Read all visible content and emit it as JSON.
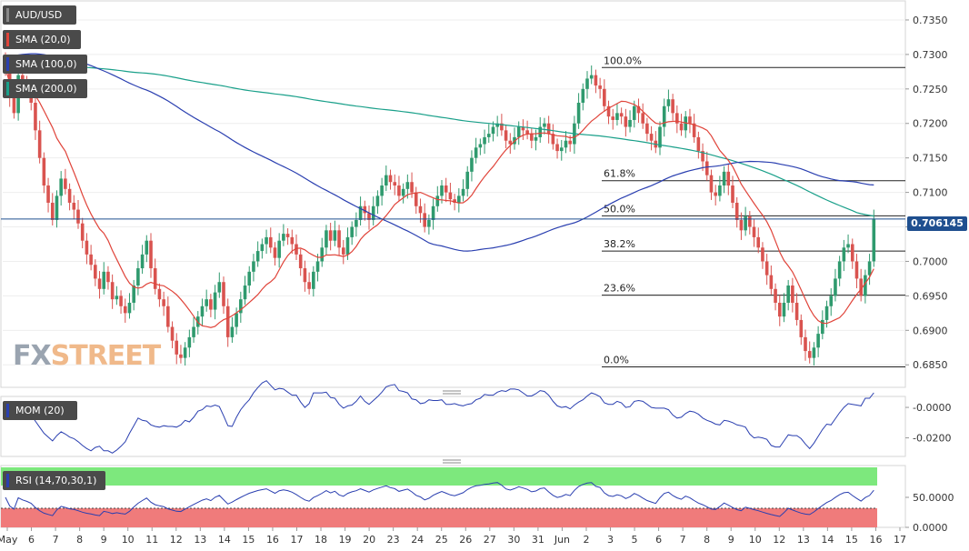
{
  "symbol": "AUD/USD",
  "indicators": {
    "sma20": {
      "label": "SMA (20,0)",
      "color": "#e0443a"
    },
    "sma100": {
      "label": "SMA (100,0)",
      "color": "#2a3fb0"
    },
    "sma200": {
      "label": "SMA (200,0)",
      "color": "#1aa08a"
    },
    "mom": {
      "label": "MOM (20)",
      "color": "#2a3fb0"
    },
    "rsi": {
      "label": "RSI (14,70,30,1)",
      "color": "#2a3fb0"
    }
  },
  "logo": {
    "fx": "FX",
    "street": "STREET"
  },
  "price_label": "0.706145",
  "chart_data": [
    {
      "type": "candlestick",
      "title": "AUD/USD",
      "y_ticks": [
        "0.7350",
        "0.7300",
        "0.7250",
        "0.7200",
        "0.7150",
        "0.7100",
        "0.7050",
        "0.7000",
        "0.6950",
        "0.6900",
        "0.6850"
      ],
      "ylim": [
        0.682,
        0.7375
      ],
      "x_ticks": [
        "May",
        "6",
        "7",
        "8",
        "9",
        "10",
        "11",
        "12",
        "13",
        "14",
        "15",
        "16",
        "17",
        "18",
        "19",
        "20",
        "23",
        "24",
        "25",
        "26",
        "27",
        "30",
        "31",
        "Jun",
        "2",
        "3",
        "5",
        "6",
        "7",
        "8",
        "9",
        "10",
        "12",
        "13",
        "14",
        "15",
        "16",
        "17"
      ],
      "current_price": 0.706145,
      "fibonacci": [
        {
          "label": "100.0%",
          "value": 0.7281
        },
        {
          "label": "61.8%",
          "value": 0.7117
        },
        {
          "label": "50.0%",
          "value": 0.7066
        },
        {
          "label": "38.2%",
          "value": 0.7015
        },
        {
          "label": "23.6%",
          "value": 0.6951
        },
        {
          "label": "0.0%",
          "value": 0.6847
        }
      ],
      "candles_close": [
        0.728,
        0.7238,
        0.7215,
        0.727,
        0.7255,
        0.7245,
        0.723,
        0.719,
        0.715,
        0.711,
        0.7085,
        0.706,
        0.7095,
        0.712,
        0.7105,
        0.7085,
        0.7075,
        0.7055,
        0.703,
        0.701,
        0.6995,
        0.6975,
        0.696,
        0.6985,
        0.697,
        0.6945,
        0.695,
        0.6935,
        0.6925,
        0.694,
        0.6965,
        0.699,
        0.701,
        0.703,
        0.699,
        0.696,
        0.6945,
        0.6935,
        0.6905,
        0.6885,
        0.6865,
        0.686,
        0.6875,
        0.689,
        0.6905,
        0.692,
        0.6935,
        0.6945,
        0.693,
        0.6955,
        0.697,
        0.6935,
        0.689,
        0.6905,
        0.6925,
        0.6945,
        0.6965,
        0.6985,
        0.7,
        0.7015,
        0.7025,
        0.7035,
        0.702,
        0.7005,
        0.703,
        0.704,
        0.7035,
        0.7025,
        0.701,
        0.699,
        0.697,
        0.696,
        0.6985,
        0.7,
        0.702,
        0.7045,
        0.703,
        0.7045,
        0.702,
        0.701,
        0.7035,
        0.705,
        0.706,
        0.708,
        0.707,
        0.706,
        0.708,
        0.7095,
        0.711,
        0.7125,
        0.7115,
        0.711,
        0.7095,
        0.7105,
        0.7115,
        0.71,
        0.708,
        0.707,
        0.705,
        0.706,
        0.708,
        0.7095,
        0.711,
        0.71,
        0.709,
        0.7085,
        0.7095,
        0.7105,
        0.713,
        0.715,
        0.7165,
        0.717,
        0.718,
        0.7185,
        0.7195,
        0.72,
        0.719,
        0.7175,
        0.717,
        0.718,
        0.7195,
        0.719,
        0.7185,
        0.7175,
        0.718,
        0.7195,
        0.72,
        0.7185,
        0.717,
        0.716,
        0.7165,
        0.7175,
        0.717,
        0.72,
        0.723,
        0.725,
        0.7265,
        0.727,
        0.7255,
        0.725,
        0.7225,
        0.721,
        0.7205,
        0.7215,
        0.721,
        0.7195,
        0.7205,
        0.7225,
        0.7215,
        0.72,
        0.7185,
        0.7175,
        0.7165,
        0.7195,
        0.7225,
        0.7235,
        0.7215,
        0.72,
        0.719,
        0.721,
        0.72,
        0.718,
        0.716,
        0.7145,
        0.7125,
        0.71,
        0.7095,
        0.711,
        0.713,
        0.711,
        0.7085,
        0.706,
        0.7045,
        0.7065,
        0.705,
        0.7035,
        0.702,
        0.7,
        0.698,
        0.696,
        0.694,
        0.692,
        0.694,
        0.6965,
        0.694,
        0.6915,
        0.689,
        0.687,
        0.686,
        0.6875,
        0.6895,
        0.6915,
        0.6935,
        0.695,
        0.6975,
        0.7,
        0.702,
        0.7025,
        0.7,
        0.6975,
        0.695,
        0.698,
        0.7,
        0.7061
      ]
    },
    {
      "type": "line",
      "title": "MOM (20)",
      "y_ticks": [
        "-0.0000",
        "-0.0200"
      ],
      "ylim": [
        -0.031,
        0.006
      ]
    },
    {
      "type": "line",
      "title": "RSI (14,70,30,1)",
      "y_ticks": [
        "50.0000",
        "0.0000"
      ],
      "ylim": [
        0,
        100
      ],
      "overbought": 70,
      "oversold": 30,
      "last_value": 62
    }
  ]
}
